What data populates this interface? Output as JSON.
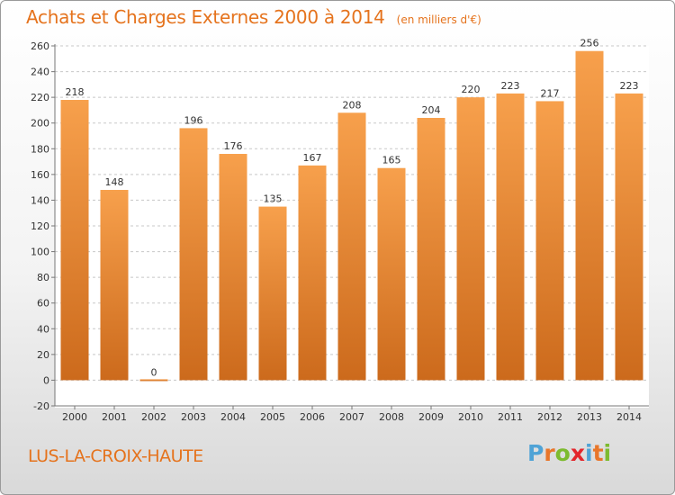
{
  "title": "Achats et Charges Externes 2000 à 2014",
  "unit_note": "(en milliers d'€)",
  "commune": "LUS-LA-CROIX-HAUTE",
  "logo": {
    "text": "Proxiti",
    "letter_colors": [
      "#4fa3d6",
      "#e8762a",
      "#7dbb2f",
      "#e3262c",
      "#4fa3d6",
      "#e8762a",
      "#7dbb2f"
    ]
  },
  "colors": {
    "accent": "#e5731d",
    "bar_top": "#f7a04c",
    "bar_bottom": "#cc6a1c",
    "grid": "#c8c8c8"
  },
  "chart_data": {
    "type": "bar",
    "categories": [
      "2000",
      "2001",
      "2002",
      "2003",
      "2004",
      "2005",
      "2006",
      "2007",
      "2008",
      "2009",
      "2010",
      "2011",
      "2012",
      "2013",
      "2014"
    ],
    "values": [
      218,
      148,
      0,
      196,
      176,
      135,
      167,
      208,
      165,
      204,
      220,
      223,
      217,
      256,
      223
    ],
    "ylim": [
      -20,
      260
    ],
    "yticks": [
      -20,
      0,
      20,
      40,
      60,
      80,
      100,
      120,
      140,
      160,
      180,
      200,
      220,
      240,
      260
    ],
    "grid": "dashed horizontal",
    "xlabel": "",
    "ylabel": ""
  }
}
